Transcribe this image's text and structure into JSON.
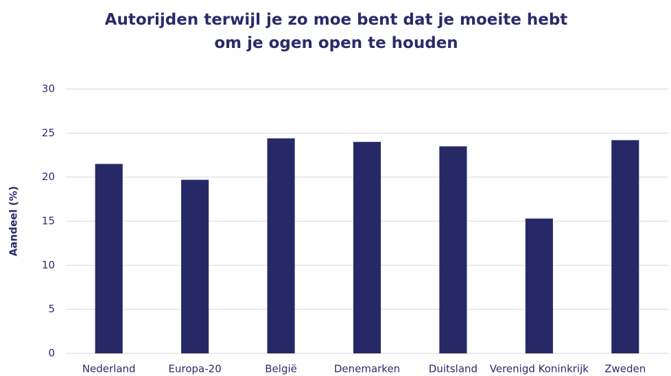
{
  "chart_data": {
    "type": "bar",
    "title": "Autorijden terwijl je zo moe bent dat je moeite hebt om je ogen open te houden",
    "y_label": "Aandeel (%)",
    "categories": [
      "Nederland",
      "Europa-20",
      "België",
      "Denemarken",
      "Duitsland",
      "Verenigd Koninkrijk",
      "Zweden"
    ],
    "values": [
      21.5,
      19.7,
      24.4,
      24.0,
      23.5,
      15.3,
      24.2
    ],
    "color": "#272966",
    "ylim": [
      0,
      30
    ],
    "yticks": [
      0,
      5,
      10,
      15,
      20,
      25,
      30
    ],
    "grid": true
  }
}
